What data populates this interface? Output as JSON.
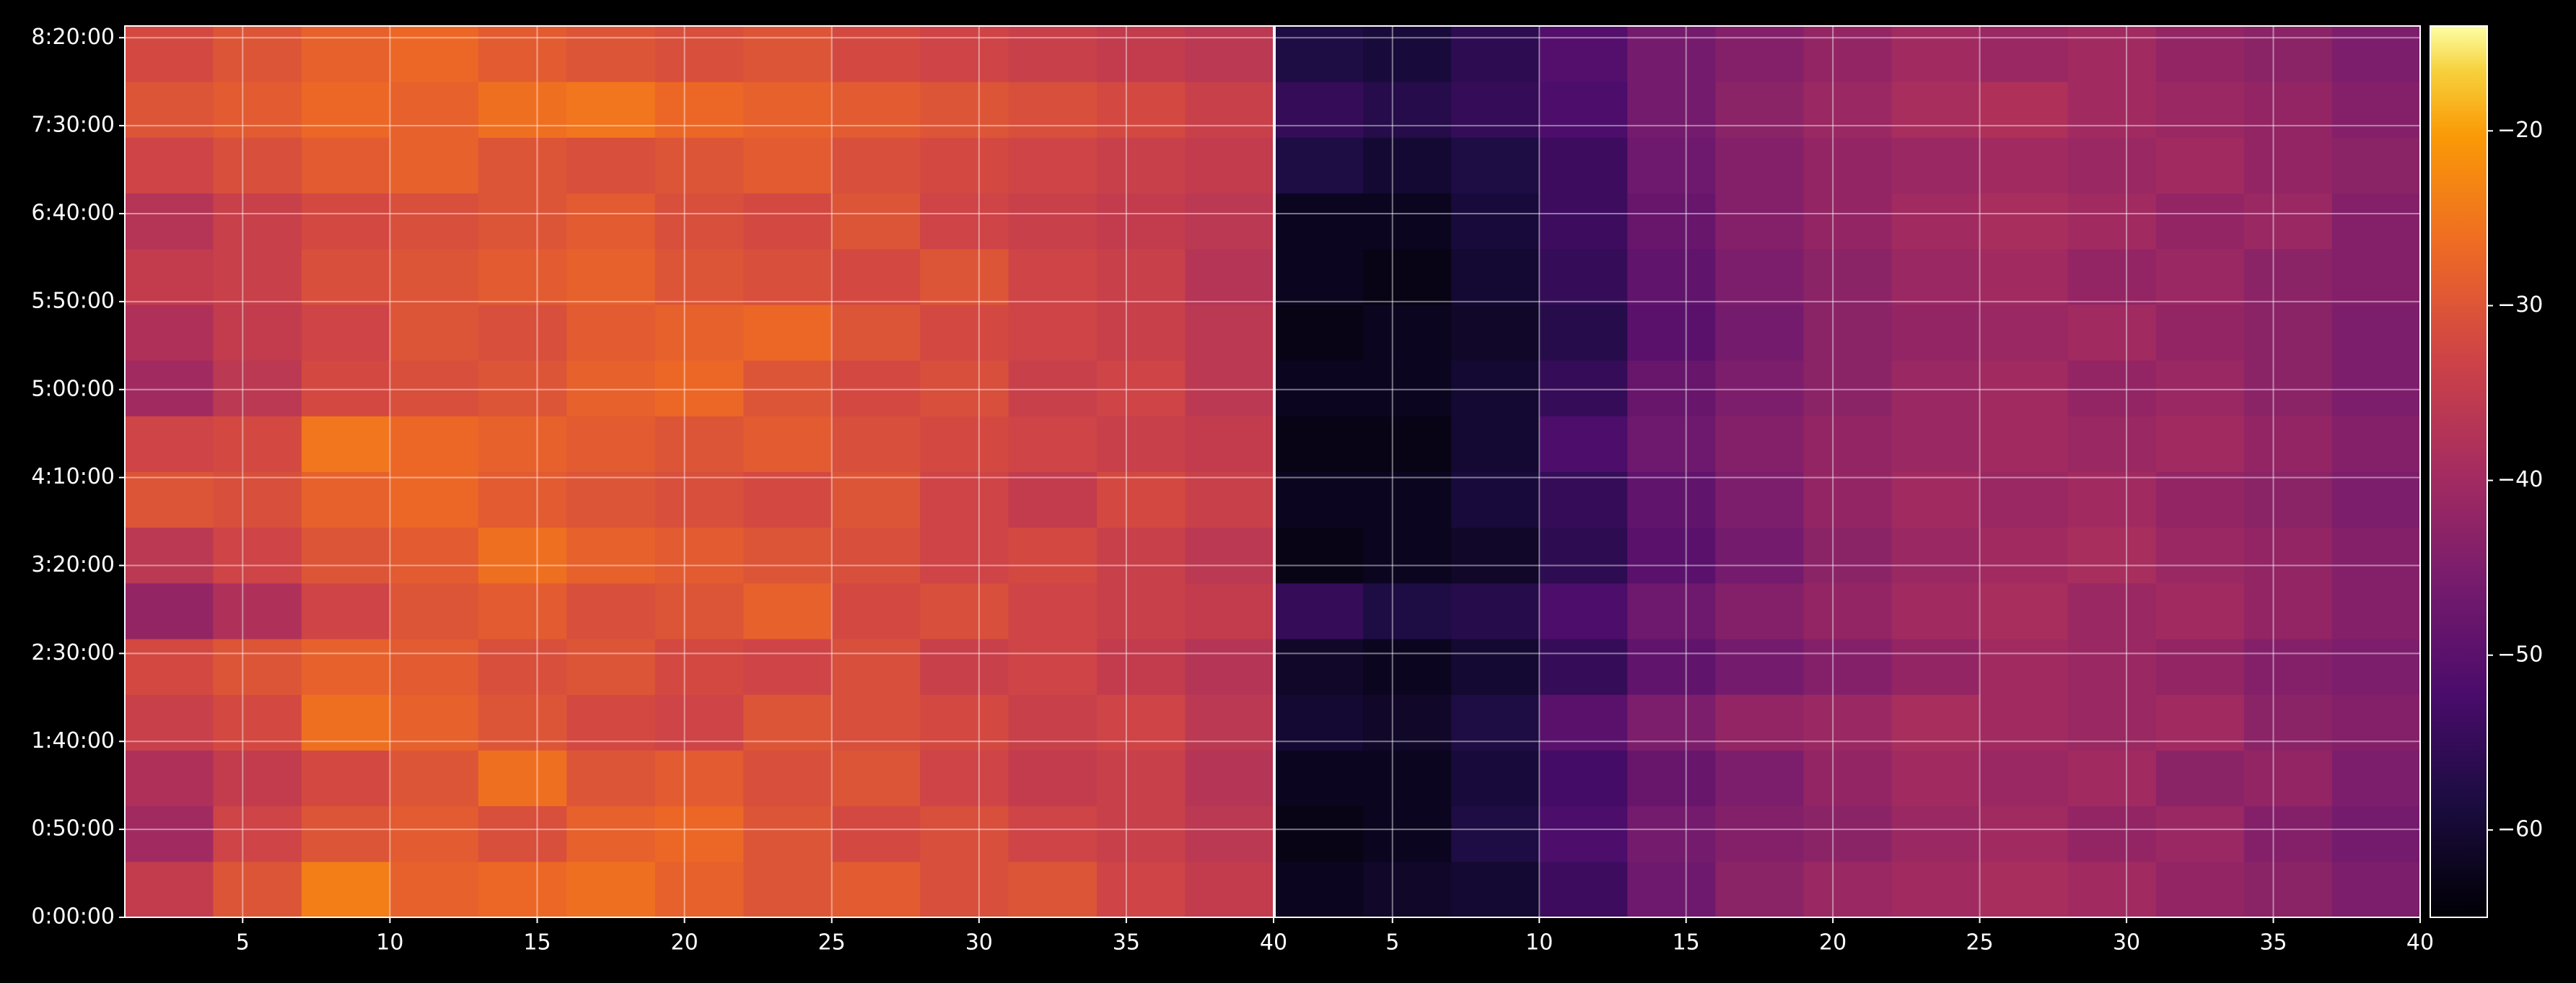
{
  "chart_data": [
    {
      "type": "heatmap",
      "colormap": "inferno",
      "clim": [
        -65,
        -14
      ],
      "grid": true,
      "x": [
        2.5,
        5.5,
        8.5,
        11.5,
        14.5,
        17.5,
        20.5,
        23.5,
        26.5,
        29.5,
        32.5,
        35.5,
        38.5
      ],
      "y": [
        950,
        2850,
        4750,
        6650,
        8550,
        10450,
        12350,
        14250,
        16150,
        18050,
        19950,
        21850,
        23750,
        25650,
        27550,
        29450
      ],
      "z": [
        [
          -35,
          -30,
          -24,
          -28,
          -27,
          -26,
          -28,
          -30,
          -29,
          -31,
          -30,
          -33,
          -35
        ],
        [
          -40,
          -33,
          -30,
          -29,
          -31,
          -28,
          -27,
          -30,
          -32,
          -31,
          -33,
          -34,
          -36
        ],
        [
          -38,
          -35,
          -32,
          -30,
          -26,
          -30,
          -29,
          -31,
          -30,
          -33,
          -35,
          -34,
          -37
        ],
        [
          -34,
          -32,
          -26,
          -28,
          -30,
          -32,
          -33,
          -30,
          -31,
          -32,
          -34,
          -33,
          -36
        ],
        [
          -32,
          -30,
          -28,
          -29,
          -31,
          -30,
          -32,
          -33,
          -31,
          -34,
          -33,
          -35,
          -37
        ],
        [
          -42,
          -38,
          -33,
          -30,
          -29,
          -31,
          -30,
          -28,
          -32,
          -31,
          -33,
          -34,
          -35
        ],
        [
          -36,
          -33,
          -30,
          -29,
          -26,
          -28,
          -29,
          -30,
          -31,
          -33,
          -32,
          -34,
          -36
        ],
        [
          -30,
          -31,
          -28,
          -27,
          -29,
          -30,
          -31,
          -32,
          -30,
          -33,
          -35,
          -32,
          -34
        ],
        [
          -33,
          -32,
          -25,
          -27,
          -28,
          -29,
          -30,
          -29,
          -31,
          -32,
          -33,
          -34,
          -35
        ],
        [
          -40,
          -36,
          -32,
          -31,
          -30,
          -28,
          -27,
          -30,
          -32,
          -31,
          -34,
          -33,
          -36
        ],
        [
          -38,
          -35,
          -33,
          -30,
          -31,
          -29,
          -28,
          -27,
          -30,
          -32,
          -33,
          -34,
          -36
        ],
        [
          -35,
          -34,
          -31,
          -30,
          -29,
          -28,
          -30,
          -31,
          -32,
          -30,
          -33,
          -34,
          -37
        ],
        [
          -37,
          -34,
          -32,
          -31,
          -30,
          -29,
          -31,
          -32,
          -30,
          -33,
          -34,
          -35,
          -36
        ],
        [
          -33,
          -31,
          -29,
          -28,
          -30,
          -31,
          -30,
          -29,
          -31,
          -32,
          -33,
          -34,
          -35
        ],
        [
          -30,
          -29,
          -27,
          -28,
          -26,
          -25,
          -27,
          -28,
          -29,
          -30,
          -31,
          -32,
          -34
        ],
        [
          -32,
          -30,
          -28,
          -27,
          -29,
          -30,
          -31,
          -30,
          -32,
          -33,
          -34,
          -35,
          -36
        ]
      ],
      "xlim": [
        1,
        40
      ],
      "xticks": [
        5,
        10,
        15,
        20,
        25,
        30,
        35,
        40
      ],
      "ylim": [
        0,
        30400
      ],
      "yticks": [
        {
          "value": 0,
          "label": "0:00:00"
        },
        {
          "value": 3000,
          "label": "0:50:00"
        },
        {
          "value": 6000,
          "label": "1:40:00"
        },
        {
          "value": 9000,
          "label": "2:30:00"
        },
        {
          "value": 12000,
          "label": "3:20:00"
        },
        {
          "value": 15000,
          "label": "4:10:00"
        },
        {
          "value": 18000,
          "label": "5:00:00"
        },
        {
          "value": 21000,
          "label": "5:50:00"
        },
        {
          "value": 24000,
          "label": "6:40:00"
        },
        {
          "value": 27000,
          "label": "7:30:00"
        },
        {
          "value": 30000,
          "label": "8:20:00"
        }
      ]
    },
    {
      "type": "heatmap",
      "colormap": "inferno",
      "clim": [
        -65,
        -14
      ],
      "grid": true,
      "x": [
        2.5,
        5.5,
        8.5,
        11.5,
        14.5,
        17.5,
        20.5,
        23.5,
        26.5,
        29.5,
        32.5,
        35.5,
        38.5
      ],
      "y": [
        950,
        2850,
        4750,
        6650,
        8550,
        10450,
        12350,
        14250,
        16150,
        18050,
        19950,
        21850,
        23750,
        25650,
        27550,
        29450
      ],
      "z": [
        [
          -62,
          -61,
          -60,
          -54,
          -47,
          -43,
          -41,
          -40,
          -39,
          -40,
          -42,
          -43,
          -45
        ],
        [
          -63,
          -62,
          -58,
          -52,
          -46,
          -44,
          -43,
          -41,
          -40,
          -42,
          -41,
          -44,
          -46
        ],
        [
          -62,
          -62,
          -59,
          -53,
          -48,
          -45,
          -42,
          -40,
          -41,
          -40,
          -43,
          -42,
          -45
        ],
        [
          -60,
          -61,
          -58,
          -50,
          -45,
          -42,
          -41,
          -39,
          -40,
          -41,
          -40,
          -43,
          -44
        ],
        [
          -61,
          -62,
          -60,
          -55,
          -49,
          -46,
          -44,
          -42,
          -40,
          -41,
          -42,
          -44,
          -45
        ],
        [
          -55,
          -58,
          -57,
          -52,
          -47,
          -44,
          -42,
          -40,
          -39,
          -41,
          -40,
          -42,
          -44
        ],
        [
          -63,
          -62,
          -61,
          -56,
          -50,
          -46,
          -43,
          -41,
          -40,
          -39,
          -41,
          -42,
          -44
        ],
        [
          -62,
          -62,
          -59,
          -55,
          -49,
          -45,
          -42,
          -40,
          -41,
          -40,
          -42,
          -43,
          -45
        ],
        [
          -63,
          -63,
          -60,
          -52,
          -47,
          -44,
          -42,
          -41,
          -40,
          -41,
          -40,
          -42,
          -44
        ],
        [
          -62,
          -62,
          -60,
          -55,
          -48,
          -45,
          -43,
          -41,
          -40,
          -42,
          -41,
          -43,
          -45
        ],
        [
          -63,
          -62,
          -61,
          -57,
          -50,
          -46,
          -43,
          -42,
          -41,
          -40,
          -42,
          -43,
          -45
        ],
        [
          -62,
          -63,
          -60,
          -55,
          -49,
          -45,
          -43,
          -41,
          -40,
          -42,
          -41,
          -43,
          -44
        ],
        [
          -62,
          -62,
          -59,
          -54,
          -48,
          -44,
          -42,
          -40,
          -39,
          -40,
          -42,
          -41,
          -44
        ],
        [
          -58,
          -60,
          -58,
          -54,
          -47,
          -44,
          -42,
          -41,
          -40,
          -41,
          -40,
          -42,
          -43
        ],
        [
          -55,
          -57,
          -55,
          -52,
          -46,
          -43,
          -41,
          -39,
          -38,
          -40,
          -41,
          -42,
          -44
        ],
        [
          -58,
          -59,
          -56,
          -51,
          -46,
          -44,
          -42,
          -40,
          -41,
          -40,
          -42,
          -43,
          -45
        ]
      ],
      "xlim": [
        1,
        40
      ],
      "xticks": [
        5,
        10,
        15,
        20,
        25,
        30,
        35,
        40
      ],
      "ylim": [
        0,
        30400
      ],
      "yticks": [
        0,
        3000,
        6000,
        9000,
        12000,
        15000,
        18000,
        21000,
        24000,
        27000,
        30000
      ]
    }
  ],
  "colorbar": {
    "colormap": "inferno",
    "clim": [
      -65,
      -14
    ],
    "ticks": [
      {
        "value": -20,
        "label": "−20"
      },
      {
        "value": -30,
        "label": "−30"
      },
      {
        "value": -40,
        "label": "−40"
      },
      {
        "value": -50,
        "label": "−50"
      },
      {
        "value": -60,
        "label": "−60"
      }
    ]
  }
}
